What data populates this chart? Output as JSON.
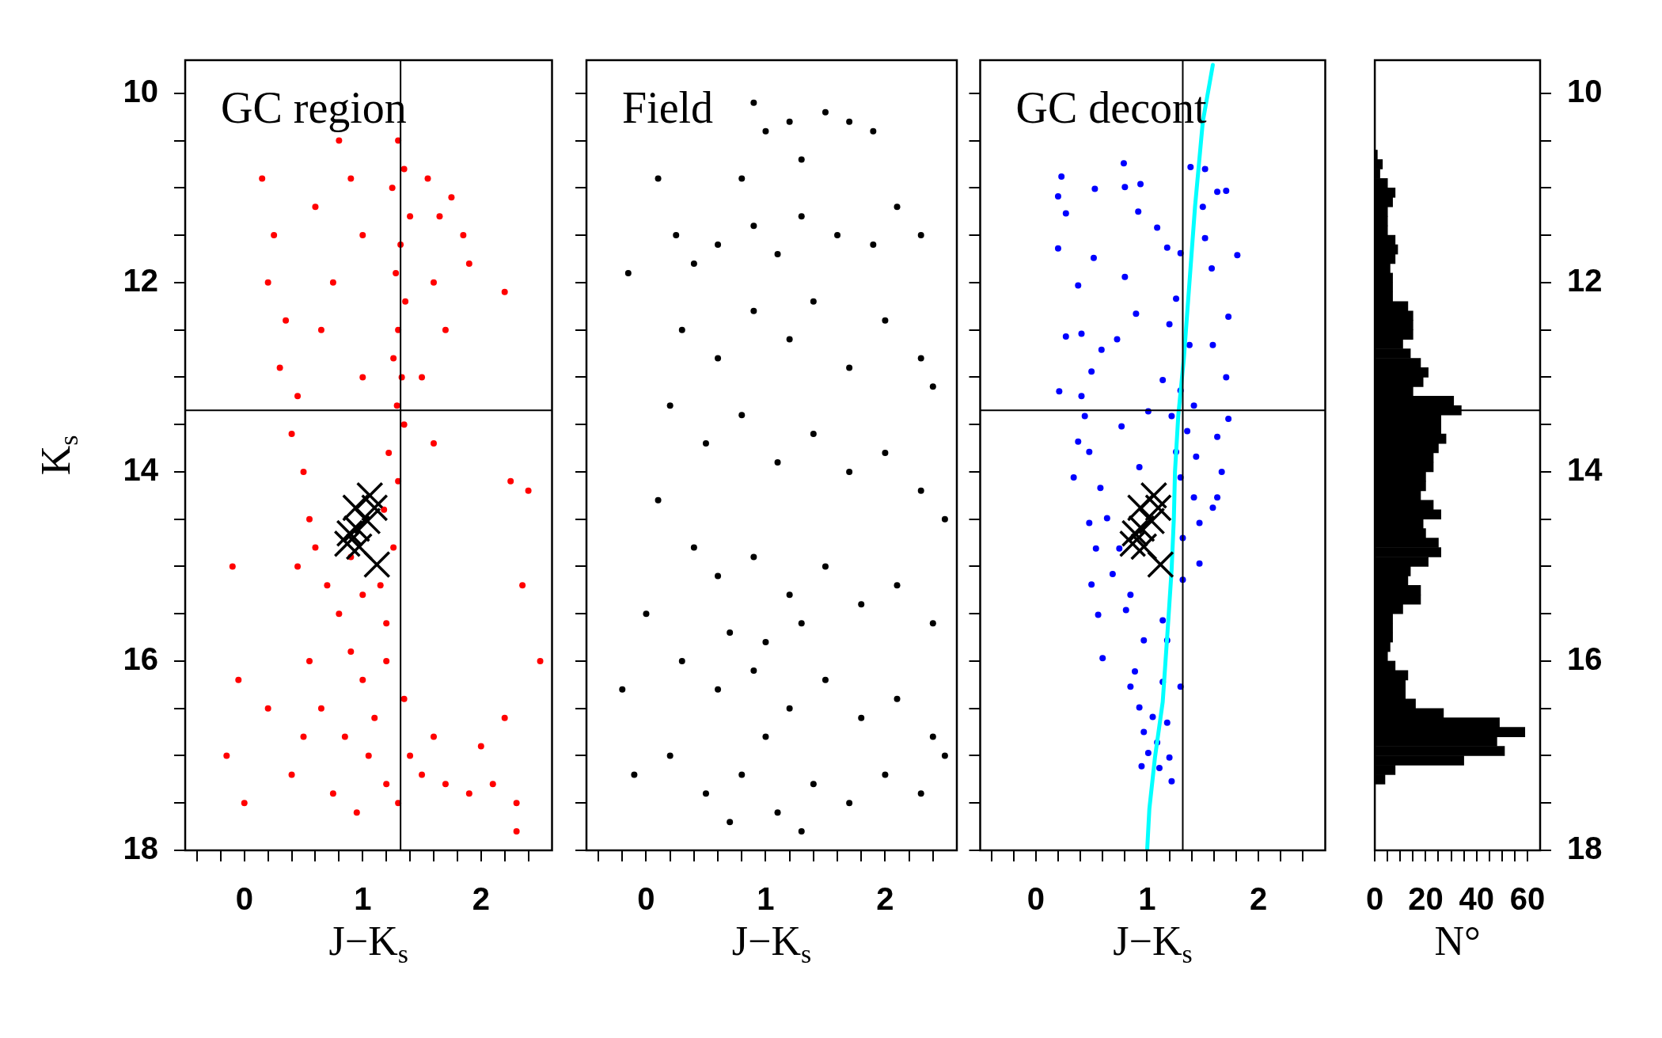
{
  "chart_data": [
    {
      "type": "scatter",
      "title": "GC region",
      "xlabel": "J−K$_{s}$",
      "ylabel": "K$_{s}$",
      "xlim": [
        -0.5,
        2.6
      ],
      "ylim": [
        18,
        9.65
      ],
      "xticks": [
        {
          "value": -0.4,
          "label": null
        },
        {
          "value": -0.2,
          "label": null
        },
        0,
        {
          "value": 0.2,
          "label": null
        },
        {
          "value": 0.4,
          "label": null
        },
        {
          "value": 0.6,
          "label": null
        },
        {
          "value": 0.8,
          "label": null
        },
        1,
        {
          "value": 1.2,
          "label": null
        },
        {
          "value": 1.4,
          "label": null
        },
        {
          "value": 1.6,
          "label": null
        },
        {
          "value": 1.8,
          "label": null
        },
        2,
        {
          "value": 2.2,
          "label": null
        },
        {
          "value": 2.4,
          "label": null
        }
      ],
      "yticks": [
        10,
        {
          "value": 10.5,
          "label": null
        },
        {
          "value": 11,
          "label": null
        },
        {
          "value": 11.5,
          "label": null
        },
        12,
        {
          "value": 12.5,
          "label": null
        },
        {
          "value": 13,
          "label": null
        },
        {
          "value": 13.5,
          "label": null
        },
        14,
        {
          "value": 14.5,
          "label": null
        },
        {
          "value": 15,
          "label": null
        },
        {
          "value": 15.5,
          "label": null
        },
        16,
        {
          "value": 16.5,
          "label": null
        },
        {
          "value": 17,
          "label": null
        },
        {
          "value": 17.5,
          "label": null
        },
        18
      ],
      "series": [
        {
          "color": "#ff0000",
          "marker": "circle",
          "x": [
            1.3,
            1.35,
            1.25,
            1.4,
            1.32,
            1.28,
            1.36,
            1.3,
            1.26,
            1.33,
            1.29,
            1.35,
            1.22,
            1.3,
            1.18,
            1.26,
            1.15,
            1.2,
            0.8,
            0.9,
            0.6,
            1.0,
            0.75,
            1.55,
            1.65,
            1.75,
            1.85,
            1.6,
            1.7,
            1.9,
            2.2,
            2.25,
            2.4,
            1.5,
            1.6,
            1.0,
            0.65,
            0.15,
            0.25,
            0.2,
            0.35,
            0.3,
            0.45,
            0.4,
            0.5,
            0.55,
            0.45,
            0.6,
            0.7,
            0.8,
            0.9,
            1.0,
            0.65,
            0.85,
            1.05,
            1.2,
            0.75,
            0.95,
            1.3,
            1.1,
            0.9,
            1.0,
            0.55,
            0.5,
            0.4,
            1.2,
            1.35,
            1.4,
            1.5,
            1.7,
            1.9,
            2.1,
            2.3,
            1.6,
            2.0,
            2.2,
            -0.1,
            -0.15,
            0.0,
            2.5,
            2.35,
            2.3,
            0.2,
            -0.05
          ],
          "values": [
            10.5,
            10.8,
            11.0,
            11.3,
            11.6,
            11.9,
            12.2,
            12.5,
            12.8,
            13.0,
            13.3,
            13.5,
            13.8,
            14.1,
            14.4,
            14.8,
            15.2,
            15.6,
            10.5,
            10.9,
            11.2,
            11.5,
            12.0,
            10.9,
            11.3,
            11.1,
            11.5,
            12.0,
            12.5,
            11.8,
            12.1,
            14.1,
            14.2,
            13.0,
            13.7,
            13.0,
            12.5,
            10.9,
            11.5,
            12.0,
            12.4,
            12.9,
            13.2,
            13.6,
            14.0,
            14.5,
            15.0,
            14.8,
            15.2,
            15.5,
            15.9,
            16.2,
            16.5,
            16.8,
            17.0,
            17.3,
            17.4,
            17.6,
            17.5,
            16.6,
            14.9,
            15.3,
            16.0,
            16.8,
            17.2,
            16.0,
            16.4,
            17.0,
            17.2,
            17.3,
            17.4,
            17.3,
            17.5,
            16.8,
            16.9,
            16.6,
            15.0,
            17.0,
            17.5,
            16.0,
            15.2,
            17.8,
            16.5,
            16.2
          ]
        },
        {
          "color": "#000000",
          "marker": "cross",
          "x": [
            0.94,
            1.06,
            1.1,
            1.04,
            0.89,
            0.95,
            0.87,
            0.97,
            1.12
          ],
          "values": [
            14.38,
            14.25,
            14.38,
            14.52,
            14.65,
            14.6,
            14.76,
            14.79,
            14.98
          ]
        }
      ],
      "ref_lines": [
        {
          "axis": "x",
          "value": 1.32
        },
        {
          "axis": "y",
          "value": 13.35
        }
      ]
    },
    {
      "type": "scatter",
      "title": "Field",
      "xlabel": "J−K$_{s}$",
      "tick_labels": "x",
      "xlim": [
        -0.5,
        2.6
      ],
      "ylim": [
        18,
        9.65
      ],
      "xticks": [
        {
          "value": -0.4,
          "label": null
        },
        {
          "value": -0.2,
          "label": null
        },
        0,
        {
          "value": 0.2,
          "label": null
        },
        {
          "value": 0.4,
          "label": null
        },
        {
          "value": 0.6,
          "label": null
        },
        {
          "value": 0.8,
          "label": null
        },
        1,
        {
          "value": 1.2,
          "label": null
        },
        {
          "value": 1.4,
          "label": null
        },
        {
          "value": 1.6,
          "label": null
        },
        {
          "value": 1.8,
          "label": null
        },
        2,
        {
          "value": 2.2,
          "label": null
        },
        {
          "value": 2.4,
          "label": null
        }
      ],
      "yticks": [
        10,
        {
          "value": 10.5,
          "label": null
        },
        {
          "value": 11,
          "label": null
        },
        {
          "value": 11.5,
          "label": null
        },
        12,
        {
          "value": 12.5,
          "label": null
        },
        {
          "value": 13,
          "label": null
        },
        {
          "value": 13.5,
          "label": null
        },
        14,
        {
          "value": 14.5,
          "label": null
        },
        {
          "value": 15,
          "label": null
        },
        {
          "value": 15.5,
          "label": null
        },
        16,
        {
          "value": 16.5,
          "label": null
        },
        {
          "value": 17,
          "label": null
        },
        {
          "value": 17.5,
          "label": null
        },
        18
      ],
      "series": [
        {
          "color": "#000000",
          "marker": "circle",
          "x": [
            0.9,
            1.0,
            1.2,
            1.5,
            1.7,
            1.9,
            1.3,
            0.8,
            0.1,
            0.25,
            0.4,
            0.6,
            0.9,
            1.1,
            1.3,
            1.6,
            1.9,
            2.1,
            2.3,
            -0.15,
            0.3,
            0.6,
            0.9,
            1.2,
            1.4,
            1.7,
            2.0,
            2.3,
            2.4,
            0.2,
            0.5,
            0.8,
            1.1,
            1.4,
            1.7,
            2.0,
            2.3,
            2.5,
            0.1,
            0.4,
            0.6,
            0.9,
            1.2,
            1.5,
            1.8,
            2.1,
            2.4,
            0.0,
            -0.2,
            0.3,
            0.6,
            0.9,
            1.2,
            1.5,
            1.8,
            2.1,
            2.4,
            -0.1,
            0.2,
            0.5,
            0.8,
            1.1,
            1.4,
            1.7,
            2.0,
            2.3,
            2.5,
            0.7,
            1.3,
            1.0,
            0.7,
            1.0,
            1.3
          ],
          "values": [
            10.1,
            10.4,
            10.3,
            10.2,
            10.3,
            10.4,
            10.7,
            10.9,
            10.9,
            11.5,
            11.8,
            11.6,
            11.4,
            11.7,
            11.3,
            11.5,
            11.6,
            11.2,
            11.5,
            11.9,
            12.5,
            12.8,
            12.3,
            12.6,
            12.2,
            12.9,
            12.4,
            12.8,
            13.1,
            13.3,
            13.7,
            13.4,
            13.9,
            13.6,
            14.0,
            13.8,
            14.2,
            14.5,
            14.3,
            14.8,
            15.1,
            14.9,
            15.3,
            15.0,
            15.4,
            15.2,
            15.6,
            15.5,
            16.3,
            16.0,
            16.3,
            16.1,
            16.5,
            16.2,
            16.6,
            16.4,
            16.8,
            17.2,
            17.0,
            17.4,
            17.2,
            17.6,
            17.3,
            17.5,
            17.2,
            17.4,
            17.0,
            17.7,
            17.8,
            16.8,
            15.7,
            15.8,
            15.6
          ]
        }
      ]
    },
    {
      "type": "scatter",
      "title": "GC decont",
      "xlabel": "J−K$_{s}$",
      "tick_labels": "x",
      "xlim": [
        -0.5,
        2.6
      ],
      "ylim": [
        18,
        9.65
      ],
      "xticks": [
        {
          "value": -0.4,
          "label": null
        },
        {
          "value": -0.2,
          "label": null
        },
        0,
        {
          "value": 0.2,
          "label": null
        },
        {
          "value": 0.4,
          "label": null
        },
        {
          "value": 0.6,
          "label": null
        },
        {
          "value": 0.8,
          "label": null
        },
        1,
        {
          "value": 1.2,
          "label": null
        },
        {
          "value": 1.4,
          "label": null
        },
        {
          "value": 1.6,
          "label": null
        },
        {
          "value": 1.8,
          "label": null
        },
        2,
        {
          "value": 2.2,
          "label": null
        },
        {
          "value": 2.4,
          "label": null
        }
      ],
      "yticks": [
        10,
        {
          "value": 10.5,
          "label": null
        },
        {
          "value": 11,
          "label": null
        },
        {
          "value": 11.5,
          "label": null
        },
        12,
        {
          "value": 12.5,
          "label": null
        },
        {
          "value": 13,
          "label": null
        },
        {
          "value": 13.5,
          "label": null
        },
        14,
        {
          "value": 14.5,
          "label": null
        },
        {
          "value": 15,
          "label": null
        },
        {
          "value": 15.5,
          "label": null
        },
        16,
        {
          "value": 16.5,
          "label": null
        },
        {
          "value": 17,
          "label": null
        },
        {
          "value": 17.5,
          "label": null
        },
        18
      ],
      "series": [
        {
          "color": "#0000ff",
          "marker": "circle",
          "x": [
            0.23,
            0.2,
            0.27,
            0.2,
            0.53,
            0.79,
            0.8,
            0.94,
            0.92,
            0.52,
            0.8,
            0.38,
            0.27,
            0.41,
            0.59,
            0.73,
            0.5,
            0.21,
            0.41,
            0.9,
            1.09,
            1.18,
            1.3,
            1.39,
            1.52,
            1.63,
            1.71,
            1.81,
            1.5,
            1.52,
            1.58,
            1.73,
            1.26,
            1.2,
            1.38,
            1.59,
            1.71,
            1.14,
            1.3,
            1.42,
            1.73,
            1.22,
            1.36,
            1.63,
            1.26,
            1.44,
            1.67,
            1.3,
            1.59,
            1.42,
            1.47,
            1.32,
            1.47,
            1.32,
            0.44,
            0.38,
            0.48,
            0.34,
            0.58,
            0.48,
            0.64,
            0.54,
            0.75,
            0.5,
            0.69,
            0.81,
            0.56,
            0.85,
            1.14,
            0.6,
            0.97,
            1.18,
            0.89,
            1.14,
            0.93,
            1.05,
            1.18,
            0.97,
            1.09,
            1.01,
            1.2,
            0.95,
            1.22,
            1.11,
            1.3,
            0.85,
            1.01,
            0.77,
            0.93,
            1.63
          ],
          "values": [
            10.88,
            11.09,
            11.27,
            11.64,
            11.01,
            10.74,
            10.99,
            10.96,
            11.25,
            11.74,
            11.94,
            12.03,
            12.57,
            12.54,
            12.71,
            12.6,
            12.94,
            13.15,
            13.2,
            12.33,
            11.42,
            11.63,
            11.69,
            10.78,
            10.8,
            11.04,
            11.03,
            11.71,
            11.2,
            11.53,
            11.85,
            12.36,
            12.17,
            12.44,
            12.66,
            12.66,
            13.0,
            13.03,
            13.14,
            13.3,
            13.44,
            13.41,
            13.57,
            13.63,
            13.79,
            13.84,
            14.0,
            14.06,
            14.38,
            14.27,
            14.54,
            14.7,
            14.97,
            15.14,
            13.41,
            13.68,
            13.79,
            14.06,
            14.17,
            14.54,
            14.49,
            14.81,
            14.81,
            15.19,
            15.08,
            15.46,
            15.51,
            15.3,
            15.57,
            15.97,
            15.78,
            15.78,
            16.11,
            16.22,
            16.49,
            16.59,
            16.65,
            16.75,
            16.86,
            16.97,
            17.02,
            17.11,
            17.27,
            17.13,
            16.27,
            16.27,
            13.36,
            13.52,
            13.95,
            14.27
          ]
        },
        {
          "type": "line",
          "color": "#00ffff",
          "x": [
            1.0,
            1.02,
            1.07,
            1.14,
            1.19,
            1.22,
            1.24,
            1.25,
            1.28,
            1.33,
            1.38,
            1.43,
            1.5,
            1.59
          ],
          "values": [
            18.0,
            17.56,
            17.02,
            16.43,
            15.57,
            15.03,
            14.49,
            14.0,
            13.4,
            12.8,
            12.0,
            11.2,
            10.3,
            9.7
          ]
        },
        {
          "color": "#000000",
          "marker": "cross",
          "x": [
            0.94,
            1.06,
            1.1,
            1.04,
            0.89,
            0.95,
            0.87,
            0.97,
            1.12
          ],
          "values": [
            14.38,
            14.25,
            14.38,
            14.52,
            14.65,
            14.6,
            14.76,
            14.79,
            14.98
          ]
        }
      ],
      "ref_lines": [
        {
          "axis": "x",
          "value": 1.32
        },
        {
          "axis": "y",
          "value": 13.35
        }
      ]
    },
    {
      "type": "histogram",
      "orientation": "horizontal",
      "xlabel": "N°",
      "color": "#000000",
      "xlim": [
        0,
        65
      ],
      "ylim": [
        18,
        9.65
      ],
      "xticks": [
        0,
        {
          "value": 5,
          "label": null
        },
        {
          "value": 10,
          "label": null
        },
        {
          "value": 15,
          "label": null
        },
        20,
        {
          "value": 25,
          "label": null
        },
        {
          "value": 30,
          "label": null
        },
        {
          "value": 35,
          "label": null
        },
        40,
        {
          "value": 45,
          "label": null
        },
        {
          "value": 50,
          "label": null
        },
        {
          "value": 55,
          "label": null
        },
        60
      ],
      "yticks": [
        10,
        {
          "value": 10.5,
          "label": null
        },
        {
          "value": 11,
          "label": null
        },
        {
          "value": 11.5,
          "label": null
        },
        12,
        {
          "value": 12.5,
          "label": null
        },
        {
          "value": 13,
          "label": null
        },
        {
          "value": 13.5,
          "label": null
        },
        14,
        {
          "value": 14.5,
          "label": null
        },
        {
          "value": 15,
          "label": null
        },
        {
          "value": 15.5,
          "label": null
        },
        16,
        {
          "value": 16.5,
          "label": null
        },
        {
          "value": 17,
          "label": null
        },
        {
          "value": 17.5,
          "label": null
        },
        18
      ],
      "bins": [
        10.6,
        10.7,
        10.8,
        10.9,
        11.0,
        11.1,
        11.2,
        11.3,
        11.4,
        11.5,
        11.6,
        11.7,
        11.8,
        11.9,
        12.0,
        12.1,
        12.2,
        12.3,
        12.4,
        12.5,
        12.6,
        12.7,
        12.8,
        12.9,
        13.0,
        13.1,
        13.2,
        13.3,
        13.4,
        13.5,
        13.6,
        13.7,
        13.8,
        13.9,
        14.0,
        14.1,
        14.2,
        14.3,
        14.4,
        14.5,
        14.6,
        14.7,
        14.8,
        14.9,
        15.0,
        15.1,
        15.2,
        15.3,
        15.4,
        15.5,
        15.6,
        15.7,
        15.8,
        15.9,
        16.0,
        16.1,
        16.2,
        16.3,
        16.4,
        16.5,
        16.6,
        16.7,
        16.8,
        16.9,
        17.0,
        17.1,
        17.2,
        17.3
      ],
      "values": [
        1,
        3,
        2,
        5,
        8,
        7,
        5,
        5,
        5,
        8,
        9,
        8,
        6,
        7,
        7,
        7,
        13,
        15,
        15,
        15,
        11,
        14,
        18,
        21,
        19,
        15,
        31,
        34,
        26,
        26,
        28,
        25,
        23,
        23,
        20,
        20,
        18,
        23,
        26,
        19,
        20,
        25,
        26,
        21,
        14,
        13,
        18,
        18,
        11,
        7,
        7,
        7,
        6,
        5,
        8,
        13,
        12,
        12,
        16,
        27,
        49,
        59,
        48,
        51,
        35,
        8,
        4
      ],
      "ref_lines": [
        {
          "axis": "y",
          "value": 13.35
        }
      ]
    }
  ]
}
